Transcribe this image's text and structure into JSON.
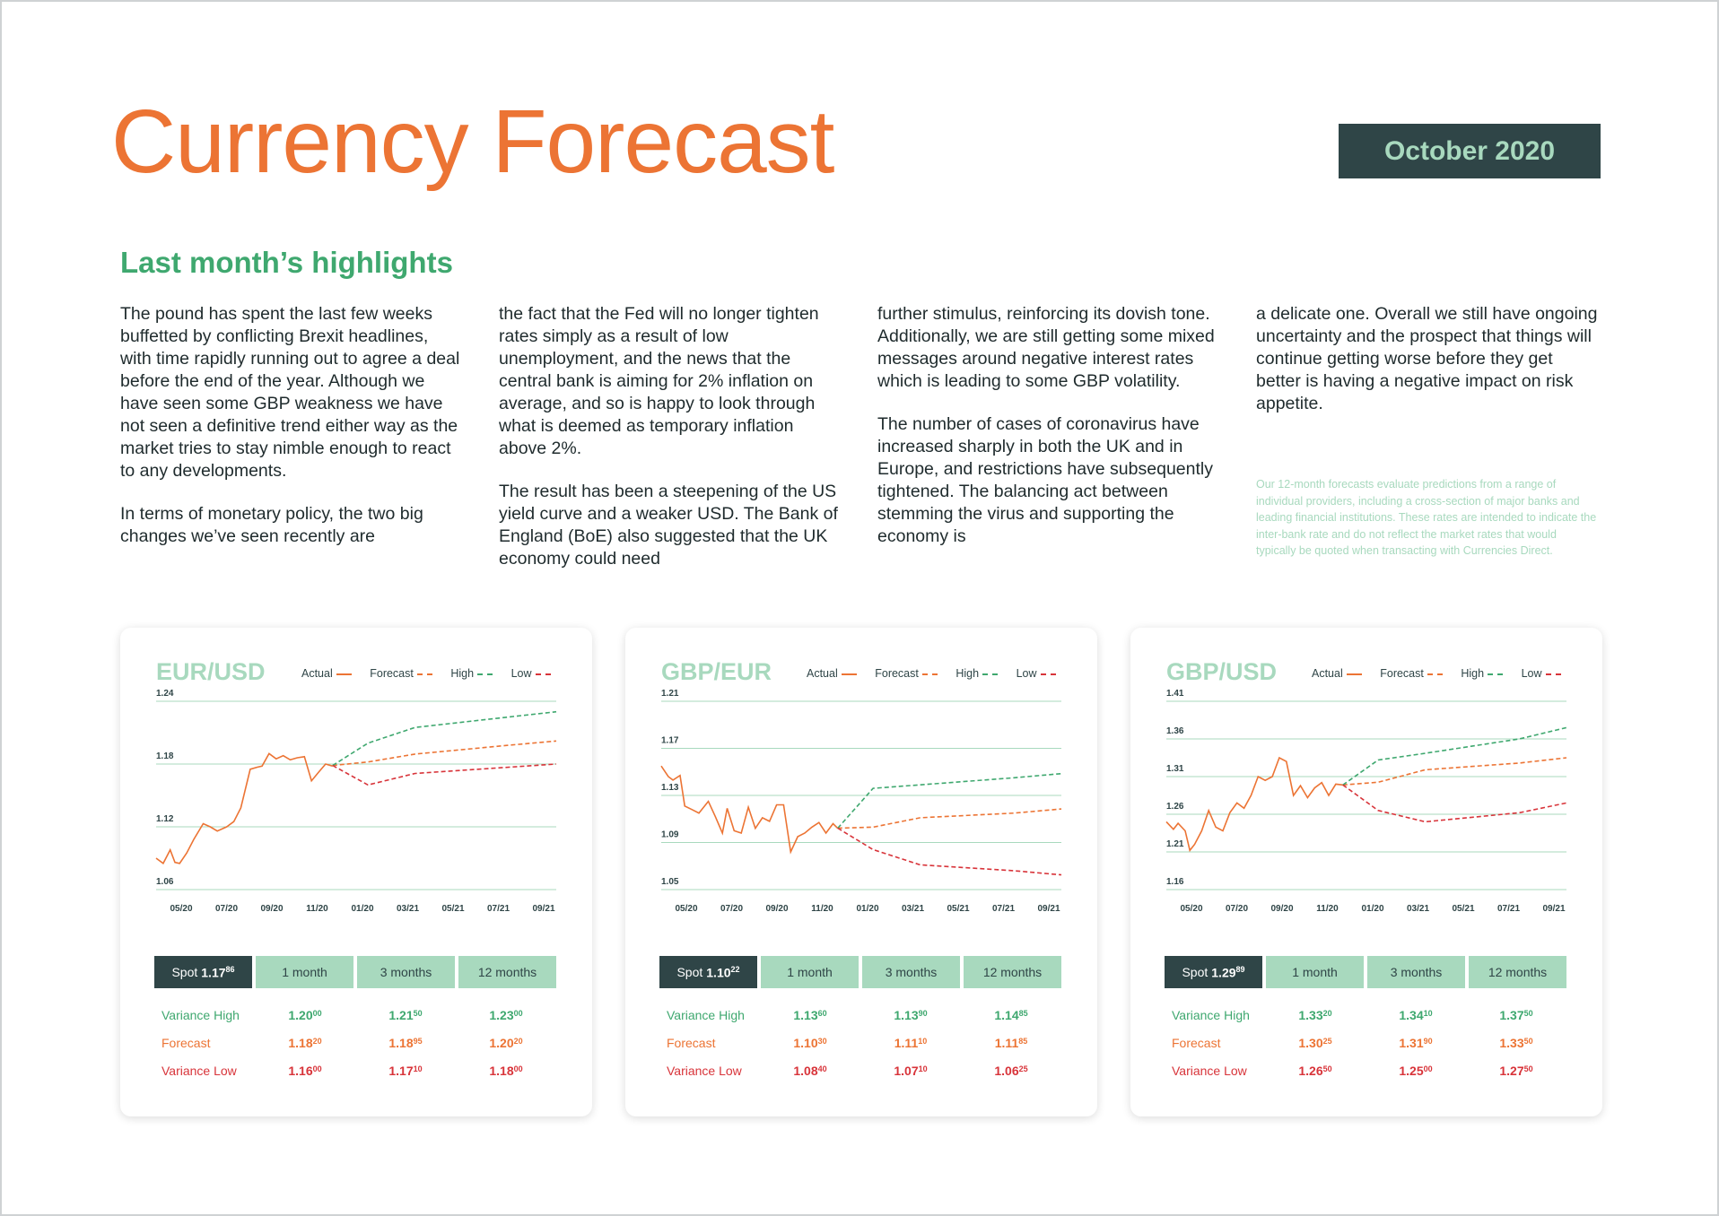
{
  "header": {
    "title": "Currency Forecast",
    "date": "October 2020"
  },
  "highlights": {
    "heading": "Last month’s highlights",
    "columns": [
      [
        "The pound has spent the last few weeks buffetted by conflicting Brexit headlines, with time rapidly running out to agree a deal before the end of the year. Although we have seen some GBP weakness we have not seen a definitive trend either way as the market tries to stay nimble enough to react to any developments.",
        "In terms of monetary policy, the two big changes we’ve seen recently are"
      ],
      [
        "the fact that the Fed will no longer tighten rates simply as a result of low unemployment, and the news that the central bank is aiming for 2% inflation on average, and so is happy to look through what is deemed as temporary inflation above 2%.",
        "The result has been a steepening of the US yield curve and a weaker USD. The Bank of England (BoE) also suggested that the UK economy could need"
      ],
      [
        "further stimulus, reinforcing its dovish tone. Additionally, we are still getting some mixed messages around negative interest rates which is leading to some GBP volatility.",
        "The number of cases of coronavirus have increased sharply in both the UK and in Europe, and restrictions have subsequently tightened. The balancing act between stemming the virus and supporting the economy is"
      ],
      [
        "a delicate one. Overall we still have ongoing uncertainty and the prospect that things will continue getting worse before they get better is having a negative impact on risk appetite."
      ]
    ],
    "disclaimer": "Our 12-month forecasts evaluate predictions from a range of individual providers, including a cross-section of major banks and leading financial institutions. These rates are intended to indicate the inter-bank rate and do not reflect the market rates that would typically be quoted when transacting with Currencies Direct."
  },
  "legend": {
    "actual": "Actual",
    "forecast": "Forecast",
    "high": "High",
    "low": "Low"
  },
  "colors": {
    "title": "#ec7434",
    "accent_green": "#3fa86f",
    "light_green": "#a8d9be",
    "dark": "#2f4547",
    "low_red": "#d8343a"
  },
  "cards": [
    {
      "pair": "EUR/USD",
      "spot": {
        "label": "Spot",
        "main": "1.17",
        "pip": "86"
      },
      "periods": [
        "1 month",
        "3 months",
        "12 months"
      ],
      "rows": [
        {
          "label": "Variance High",
          "cls": "c-high",
          "values": [
            [
              "1.20",
              "00"
            ],
            [
              "1.21",
              "50"
            ],
            [
              "1.23",
              "00"
            ]
          ]
        },
        {
          "label": "Forecast",
          "cls": "c-fc",
          "values": [
            [
              "1.18",
              "20"
            ],
            [
              "1.18",
              "95"
            ],
            [
              "1.20",
              "20"
            ]
          ]
        },
        {
          "label": "Variance Low",
          "cls": "c-low",
          "values": [
            [
              "1.16",
              "00"
            ],
            [
              "1.17",
              "10"
            ],
            [
              "1.18",
              "00"
            ]
          ]
        }
      ]
    },
    {
      "pair": "GBP/EUR",
      "spot": {
        "label": "Spot",
        "main": "1.10",
        "pip": "22"
      },
      "periods": [
        "1 month",
        "3 months",
        "12 months"
      ],
      "rows": [
        {
          "label": "Variance High",
          "cls": "c-high",
          "values": [
            [
              "1.13",
              "60"
            ],
            [
              "1.13",
              "90"
            ],
            [
              "1.14",
              "85"
            ]
          ]
        },
        {
          "label": "Forecast",
          "cls": "c-fc",
          "values": [
            [
              "1.10",
              "30"
            ],
            [
              "1.11",
              "10"
            ],
            [
              "1.11",
              "85"
            ]
          ]
        },
        {
          "label": "Variance Low",
          "cls": "c-low",
          "values": [
            [
              "1.08",
              "40"
            ],
            [
              "1.07",
              "10"
            ],
            [
              "1.06",
              "25"
            ]
          ]
        }
      ]
    },
    {
      "pair": "GBP/USD",
      "spot": {
        "label": "Spot",
        "main": "1.29",
        "pip": "89"
      },
      "periods": [
        "1 month",
        "3 months",
        "12 months"
      ],
      "rows": [
        {
          "label": "Variance High",
          "cls": "c-high",
          "values": [
            [
              "1.33",
              "20"
            ],
            [
              "1.34",
              "10"
            ],
            [
              "1.37",
              "50"
            ]
          ]
        },
        {
          "label": "Forecast",
          "cls": "c-fc",
          "values": [
            [
              "1.30",
              "25"
            ],
            [
              "1.31",
              "90"
            ],
            [
              "1.33",
              "50"
            ]
          ]
        },
        {
          "label": "Variance Low",
          "cls": "c-low",
          "values": [
            [
              "1.26",
              "50"
            ],
            [
              "1.25",
              "00"
            ],
            [
              "1.27",
              "50"
            ]
          ]
        }
      ]
    }
  ],
  "chart_data": [
    {
      "type": "line",
      "title": "EUR/USD",
      "x_ticks": [
        "05/20",
        "07/20",
        "09/20",
        "11/20",
        "01/20",
        "03/21",
        "05/21",
        "07/21",
        "09/21"
      ],
      "y_ticks": [
        1.06,
        1.12,
        1.18,
        1.24
      ],
      "ylim": [
        1.06,
        1.24
      ],
      "xlim": [
        0,
        17
      ],
      "series": [
        {
          "name": "Actual",
          "style": "solid",
          "color": "#ec7434",
          "x": [
            0,
            0.3,
            0.6,
            0.8,
            1.0,
            1.3,
            1.6,
            2.0,
            2.3,
            2.6,
            3.0,
            3.3,
            3.6,
            4.0,
            4.3,
            4.5,
            4.8,
            5.1,
            5.4,
            5.7,
            6.0,
            6.3,
            6.6,
            6.9,
            7.2,
            7.5
          ],
          "y": [
            1.09,
            1.085,
            1.098,
            1.086,
            1.085,
            1.095,
            1.108,
            1.123,
            1.12,
            1.116,
            1.12,
            1.125,
            1.138,
            1.175,
            1.177,
            1.178,
            1.19,
            1.185,
            1.188,
            1.184,
            1.186,
            1.187,
            1.164,
            1.172,
            1.18,
            1.178
          ]
        },
        {
          "name": "Forecast",
          "style": "dashed",
          "color": "#ec7434",
          "x": [
            7.5,
            9,
            11,
            15,
            17
          ],
          "y": [
            1.1786,
            1.182,
            1.1895,
            1.198,
            1.202
          ]
        },
        {
          "name": "High",
          "style": "dashed",
          "color": "#3fa86f",
          "x": [
            7.5,
            9,
            11,
            15,
            17
          ],
          "y": [
            1.1786,
            1.2,
            1.215,
            1.225,
            1.23
          ]
        },
        {
          "name": "Low",
          "style": "dashed",
          "color": "#d8343a",
          "x": [
            7.5,
            9,
            11,
            15,
            17
          ],
          "y": [
            1.1786,
            1.16,
            1.171,
            1.177,
            1.18
          ]
        }
      ]
    },
    {
      "type": "line",
      "title": "GBP/EUR",
      "x_ticks": [
        "05/20",
        "07/20",
        "09/20",
        "11/20",
        "01/20",
        "03/21",
        "05/21",
        "07/21",
        "09/21"
      ],
      "y_ticks": [
        1.05,
        1.09,
        1.13,
        1.17,
        1.21
      ],
      "ylim": [
        1.05,
        1.21
      ],
      "xlim": [
        0,
        17
      ],
      "series": [
        {
          "name": "Actual",
          "style": "solid",
          "color": "#ec7434",
          "x": [
            0,
            0.3,
            0.5,
            0.8,
            1.0,
            1.3,
            1.6,
            2.0,
            2.3,
            2.6,
            2.8,
            3.1,
            3.4,
            3.7,
            4.0,
            4.3,
            4.6,
            4.9,
            5.2,
            5.5,
            5.8,
            6.1,
            6.4,
            6.7,
            7.0,
            7.3,
            7.5
          ],
          "y": [
            1.155,
            1.146,
            1.143,
            1.147,
            1.121,
            1.118,
            1.115,
            1.125,
            1.112,
            1.098,
            1.119,
            1.1,
            1.098,
            1.12,
            1.102,
            1.111,
            1.108,
            1.122,
            1.122,
            1.082,
            1.095,
            1.098,
            1.103,
            1.107,
            1.098,
            1.106,
            1.102
          ]
        },
        {
          "name": "Forecast",
          "style": "dashed",
          "color": "#ec7434",
          "x": [
            7.5,
            9,
            11,
            15,
            17
          ],
          "y": [
            1.1022,
            1.103,
            1.111,
            1.115,
            1.1185
          ]
        },
        {
          "name": "High",
          "style": "dashed",
          "color": "#3fa86f",
          "x": [
            7.5,
            9,
            11,
            15,
            17
          ],
          "y": [
            1.1022,
            1.136,
            1.139,
            1.145,
            1.1485
          ]
        },
        {
          "name": "Low",
          "style": "dashed",
          "color": "#d8343a",
          "x": [
            7.5,
            9,
            11,
            15,
            17
          ],
          "y": [
            1.1022,
            1.084,
            1.071,
            1.066,
            1.0625
          ]
        }
      ]
    },
    {
      "type": "line",
      "title": "GBP/USD",
      "x_ticks": [
        "05/20",
        "07/20",
        "09/20",
        "11/20",
        "01/20",
        "03/21",
        "05/21",
        "07/21",
        "09/21"
      ],
      "y_ticks": [
        1.16,
        1.21,
        1.26,
        1.31,
        1.36,
        1.41
      ],
      "ylim": [
        1.16,
        1.41
      ],
      "xlim": [
        0,
        17
      ],
      "series": [
        {
          "name": "Actual",
          "style": "solid",
          "color": "#ec7434",
          "x": [
            0,
            0.3,
            0.5,
            0.8,
            1.0,
            1.2,
            1.5,
            1.8,
            2.1,
            2.4,
            2.7,
            3.0,
            3.3,
            3.6,
            3.9,
            4.2,
            4.5,
            4.8,
            5.1,
            5.4,
            5.7,
            6.0,
            6.3,
            6.6,
            6.9,
            7.2,
            7.5
          ],
          "y": [
            1.25,
            1.24,
            1.248,
            1.238,
            1.212,
            1.22,
            1.238,
            1.265,
            1.243,
            1.238,
            1.262,
            1.275,
            1.268,
            1.285,
            1.31,
            1.305,
            1.31,
            1.335,
            1.33,
            1.285,
            1.298,
            1.282,
            1.295,
            1.302,
            1.285,
            1.3,
            1.2989
          ]
        },
        {
          "name": "Forecast",
          "style": "dashed",
          "color": "#ec7434",
          "x": [
            7.5,
            9,
            11,
            15,
            17
          ],
          "y": [
            1.2989,
            1.3025,
            1.319,
            1.328,
            1.335
          ]
        },
        {
          "name": "High",
          "style": "dashed",
          "color": "#3fa86f",
          "x": [
            7.5,
            9,
            11,
            15,
            17
          ],
          "y": [
            1.2989,
            1.332,
            1.341,
            1.36,
            1.375
          ]
        },
        {
          "name": "Low",
          "style": "dashed",
          "color": "#d8343a",
          "x": [
            7.5,
            9,
            11,
            15,
            17
          ],
          "y": [
            1.2989,
            1.265,
            1.25,
            1.262,
            1.275
          ]
        }
      ]
    }
  ]
}
